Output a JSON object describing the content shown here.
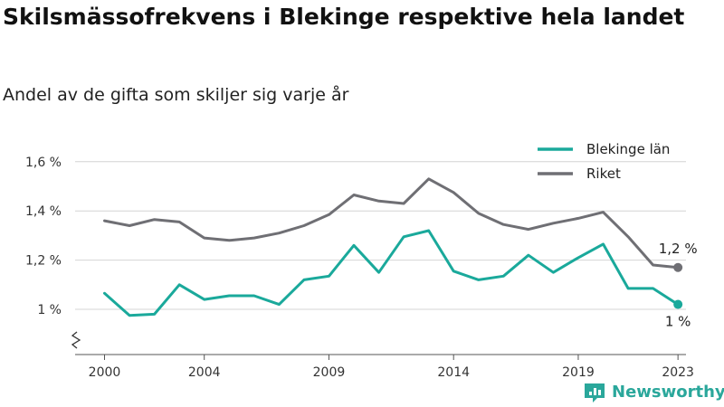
{
  "title": "Skilsmässofrekvens i Blekinge respektive hela landet",
  "subtitle": "Andel av de gifta som skiljer sig varje år",
  "brand": {
    "name": "Newsworthy",
    "color": "#2aa79b"
  },
  "chart_data": {
    "type": "line",
    "x": [
      2000,
      2001,
      2002,
      2003,
      2004,
      2005,
      2006,
      2007,
      2008,
      2009,
      2010,
      2011,
      2012,
      2013,
      2014,
      2015,
      2016,
      2017,
      2018,
      2019,
      2020,
      2021,
      2022,
      2023
    ],
    "x_tick_values": [
      2000,
      2004,
      2009,
      2014,
      2019,
      2023
    ],
    "x_tick_labels": [
      "2000",
      "2004",
      "2009",
      "2014",
      "2019",
      "2023"
    ],
    "y_tick_values": [
      1.0,
      1.2,
      1.4,
      1.6
    ],
    "y_tick_labels": [
      "1 %",
      "1,2 %",
      "1,4 %",
      "1,6 %"
    ],
    "ylim": [
      0.9,
      1.6
    ],
    "y_axis_break": true,
    "grid": true,
    "legend_position": "top-right",
    "series": [
      {
        "name": "Blekinge län",
        "color": "#1aa99b",
        "values": [
          1.065,
          0.975,
          0.98,
          1.1,
          1.04,
          1.055,
          1.055,
          1.02,
          1.12,
          1.135,
          1.26,
          1.15,
          1.295,
          1.32,
          1.155,
          1.12,
          1.135,
          1.22,
          1.15,
          1.21,
          1.265,
          1.085,
          1.085,
          1.02
        ],
        "end_label": "1 %"
      },
      {
        "name": "Riket",
        "color": "#6f6f74",
        "values": [
          1.36,
          1.34,
          1.365,
          1.355,
          1.29,
          1.28,
          1.29,
          1.31,
          1.34,
          1.385,
          1.465,
          1.44,
          1.43,
          1.53,
          1.475,
          1.39,
          1.345,
          1.325,
          1.35,
          1.37,
          1.395,
          1.295,
          1.18,
          1.17
        ],
        "end_label": "1,2 %"
      }
    ]
  }
}
